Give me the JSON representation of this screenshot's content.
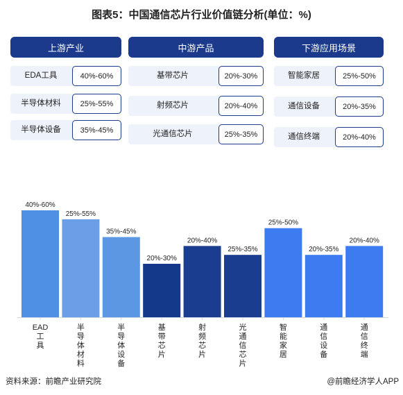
{
  "title": "图表5：中国通信芯片行业价值链分析(单位：%)",
  "groups": [
    {
      "header": "上游产业",
      "items": [
        {
          "label": "EDA工具",
          "value": "40%-60%"
        },
        {
          "label": "半导体材料",
          "value": "25%-55%"
        },
        {
          "label": "半导体设备",
          "value": "35%-45%"
        }
      ]
    },
    {
      "header": "中游产品",
      "items": [
        {
          "label": "基带芯片",
          "value": "20%-30%"
        },
        {
          "label": "射频芯片",
          "value": "20%-40%"
        },
        {
          "label": "光通信芯片",
          "value": "25%-35%"
        }
      ]
    },
    {
      "header": "下游应用场景",
      "items": [
        {
          "label": "智能家居",
          "value": "25%-50%"
        },
        {
          "label": "通信设备",
          "value": "20%-35%"
        },
        {
          "label": "通信终端",
          "value": "20%-40%"
        }
      ]
    }
  ],
  "chart_data": {
    "type": "bar",
    "categories": [
      "EAD工具",
      "半导体材料",
      "半导体设备",
      "基带芯片",
      "射频芯片",
      "光通信芯片",
      "智能家居",
      "通信设备",
      "通信终端"
    ],
    "values": [
      60,
      55,
      45,
      30,
      40,
      35,
      50,
      35,
      40
    ],
    "data_labels": [
      "40%-60%",
      "25%-55%",
      "35%-45%",
      "20%-30%",
      "20%-40%",
      "25%-35%",
      "25%-50%",
      "20%-35%",
      "20%-40%"
    ],
    "bar_colors": [
      "#4f90e4",
      "#6a9ee6",
      "#5b97e3",
      "#14398a",
      "#1b3d8f",
      "#1b3d8f",
      "#3d7cf0",
      "#3d7cf0",
      "#3d7cf0"
    ],
    "title": "",
    "xlabel": "",
    "ylabel": "",
    "ylim": [
      0,
      60
    ],
    "grid": false
  },
  "footer": {
    "source": "资料来源：前瞻产业研究院",
    "credit": "@前瞻经济学人APP"
  }
}
